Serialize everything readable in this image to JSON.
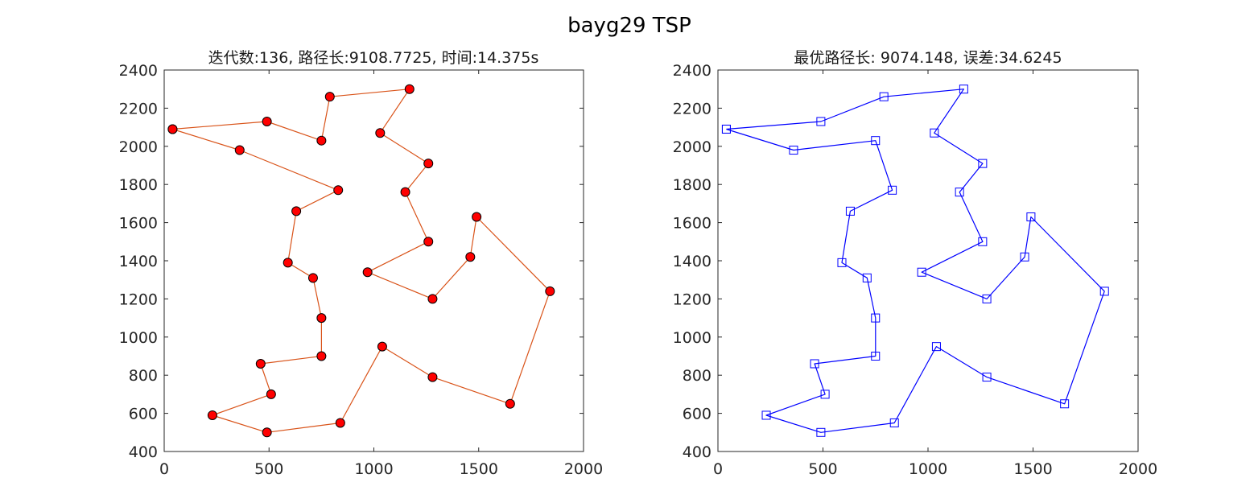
{
  "figure": {
    "title": "bayg29 TSP"
  },
  "chart_data": [
    {
      "type": "line",
      "title": "迭代数:136, 路径长:9108.7725, 时间:14.375s",
      "xlim": [
        0,
        2000
      ],
      "ylim": [
        400,
        2400
      ],
      "xticks": [
        0,
        500,
        1000,
        1500,
        2000
      ],
      "yticks": [
        400,
        600,
        800,
        1000,
        1200,
        1400,
        1600,
        1800,
        2000,
        2200,
        2400
      ],
      "grid": false,
      "line_color": "#d95319",
      "marker": "circle",
      "marker_fill": "#ff0000",
      "marker_edge": "#000000",
      "x": [
        40,
        360,
        830,
        630,
        590,
        710,
        750,
        750,
        460,
        510,
        230,
        490,
        840,
        1040,
        1280,
        1650,
        1840,
        1490,
        1460,
        1280,
        970,
        1260,
        1150,
        1260,
        1030,
        1170,
        790,
        750,
        490,
        40
      ],
      "y": [
        2090,
        1980,
        1770,
        1660,
        1390,
        1310,
        1100,
        900,
        860,
        700,
        590,
        500,
        550,
        950,
        790,
        650,
        1240,
        1630,
        1420,
        1200,
        1340,
        1500,
        1760,
        1910,
        2070,
        2300,
        2260,
        2030,
        2130,
        2090
      ]
    },
    {
      "type": "line",
      "title": "最优路径长: 9074.148, 误差:34.6245",
      "xlim": [
        0,
        2000
      ],
      "ylim": [
        400,
        2400
      ],
      "xticks": [
        0,
        500,
        1000,
        1500,
        2000
      ],
      "yticks": [
        400,
        600,
        800,
        1000,
        1200,
        1400,
        1600,
        1800,
        2000,
        2200,
        2400
      ],
      "grid": false,
      "line_color": "#0000ff",
      "marker": "square",
      "marker_fill": "none",
      "marker_edge": "#0000ff",
      "x": [
        40,
        360,
        750,
        830,
        630,
        590,
        710,
        750,
        750,
        460,
        510,
        230,
        490,
        840,
        1040,
        1280,
        1650,
        1840,
        1490,
        1460,
        1280,
        970,
        1260,
        1150,
        1260,
        1030,
        1170,
        790,
        490,
        40
      ],
      "y": [
        2090,
        1980,
        2030,
        1770,
        1660,
        1390,
        1310,
        1100,
        900,
        860,
        700,
        590,
        500,
        550,
        950,
        790,
        650,
        1240,
        1630,
        1420,
        1200,
        1340,
        1500,
        1760,
        1910,
        2070,
        2300,
        2260,
        2130,
        2090
      ]
    }
  ]
}
